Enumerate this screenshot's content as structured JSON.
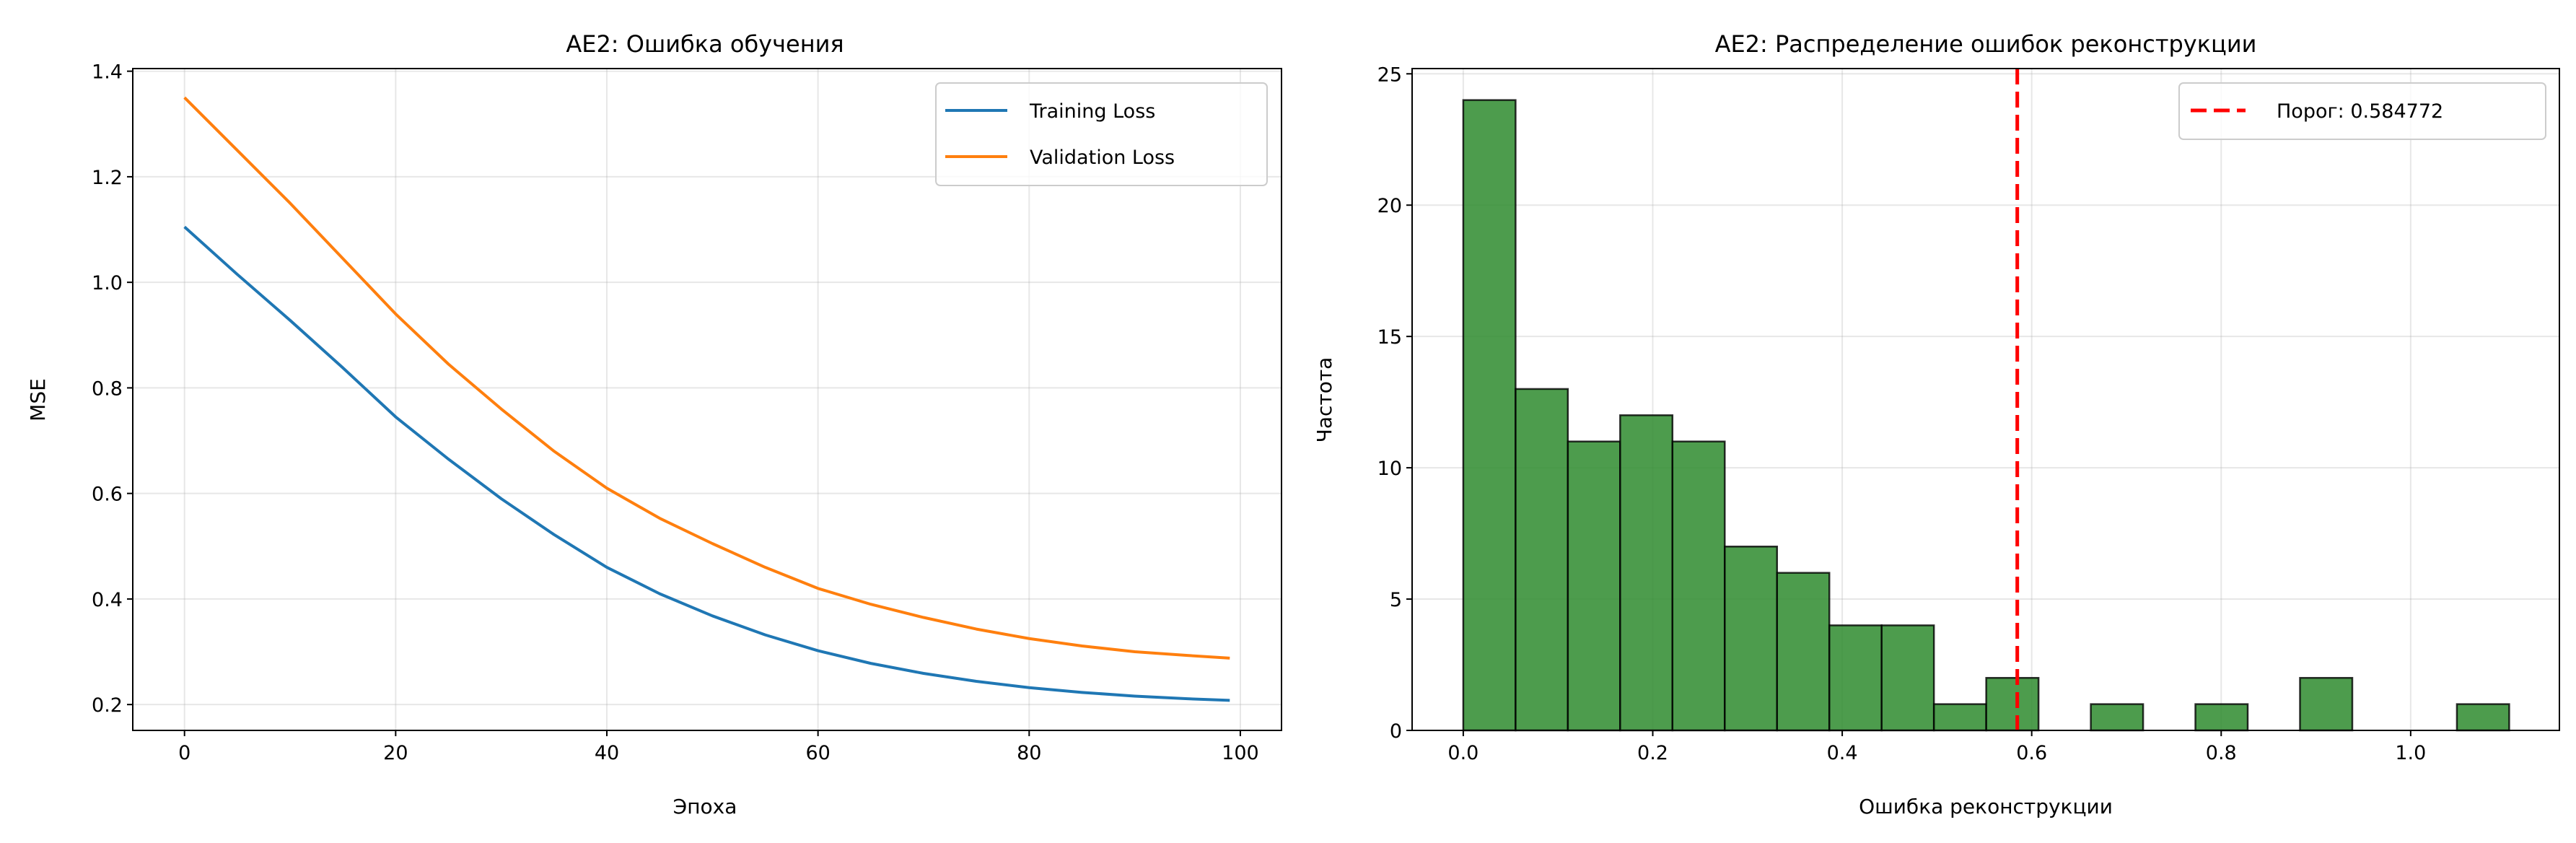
{
  "chart_data": [
    {
      "type": "line",
      "title": "AE2: Ошибка обучения",
      "xlabel": "Эпоха",
      "ylabel": "MSE",
      "xlim": [
        -4.9,
        103.9
      ],
      "ylim": [
        0.151,
        1.405
      ],
      "xticks": [
        0,
        20,
        40,
        60,
        80,
        100
      ],
      "yticks": [
        0.2,
        0.4,
        0.6,
        0.8,
        1.0,
        1.2,
        1.4
      ],
      "xtick_labels": [
        "0",
        "20",
        "40",
        "60",
        "80",
        "100"
      ],
      "ytick_labels": [
        "0.2",
        "0.4",
        "0.6",
        "0.8",
        "1.0",
        "1.2",
        "1.4"
      ],
      "grid": true,
      "legend_position": "top-right",
      "x": [
        0,
        5,
        10,
        15,
        20,
        25,
        30,
        35,
        40,
        45,
        50,
        55,
        60,
        65,
        70,
        75,
        80,
        85,
        90,
        95,
        99
      ],
      "series": [
        {
          "name": "Training Loss",
          "color": "#1f77b4",
          "values": [
            1.105,
            1.015,
            0.928,
            0.838,
            0.745,
            0.665,
            0.59,
            0.522,
            0.46,
            0.41,
            0.368,
            0.332,
            0.302,
            0.278,
            0.259,
            0.244,
            0.232,
            0.223,
            0.216,
            0.211,
            0.208
          ]
        },
        {
          "name": "Validation Loss",
          "color": "#ff7f0e",
          "values": [
            1.35,
            1.25,
            1.15,
            1.045,
            0.94,
            0.845,
            0.76,
            0.68,
            0.61,
            0.553,
            0.505,
            0.46,
            0.42,
            0.39,
            0.365,
            0.343,
            0.325,
            0.311,
            0.3,
            0.293,
            0.288
          ]
        }
      ]
    },
    {
      "type": "bar",
      "subtype": "histogram",
      "title": "AE2: Распределение ошибок реконструкции",
      "xlabel": "Ошибка реконструкции",
      "ylabel": "Частота",
      "xlim": [
        -0.054,
        1.157
      ],
      "ylim": [
        0,
        25.2
      ],
      "xticks": [
        0.0,
        0.2,
        0.4,
        0.6,
        0.8,
        1.0
      ],
      "yticks": [
        0,
        5,
        10,
        15,
        20,
        25
      ],
      "xtick_labels": [
        "0.0",
        "0.2",
        "0.4",
        "0.6",
        "0.8",
        "1.0"
      ],
      "ytick_labels": [
        "0",
        "5",
        "10",
        "15",
        "20",
        "25"
      ],
      "grid": true,
      "legend_position": "top-right",
      "bin_start": 0.0,
      "bin_width": 0.0552,
      "counts": [
        24,
        13,
        11,
        12,
        11,
        7,
        6,
        4,
        4,
        1,
        2,
        0,
        1,
        0,
        1,
        0,
        2,
        0,
        0,
        1
      ],
      "bar_color": "#2e8b2e",
      "threshold": {
        "value": 0.584772,
        "label": "Порог: 0.584772",
        "color": "#ff0000"
      }
    }
  ]
}
